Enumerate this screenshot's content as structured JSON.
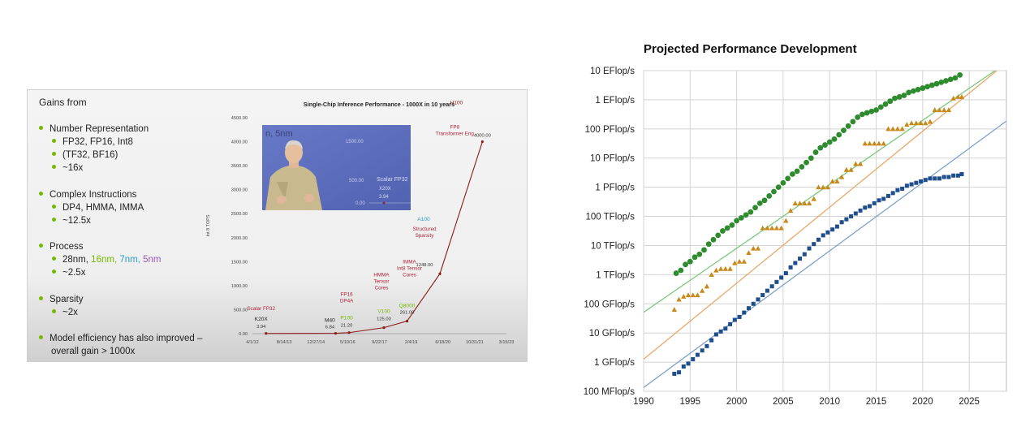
{
  "slide": {
    "gains_title": "Gains from",
    "bullets": {
      "number_rep": "Number Representation",
      "nr_1": "FP32, FP16, Int8",
      "nr_2": "(TF32, BF16)",
      "nr_3": "~16x",
      "complex": "Complex Instructions",
      "ci_1": "DP4, HMMA, IMMA",
      "ci_2": "~12.5x",
      "process": "Process",
      "p_28": "28nm,",
      "p_16": "16nm,",
      "p_7": "7nm,",
      "p_5": "5nm",
      "p_2": "~2.5x",
      "sparsity": "Sparsity",
      "sp_1": "~2x",
      "model_1": "Model efficiency has also improved –",
      "model_2": "overall gain > 1000x"
    },
    "video": {
      "overlay_title": "n, 5nm",
      "tick_1500": "1500.00",
      "tick_500": "500.00",
      "tick_0": "0.00",
      "label_1": "Scalar FP32",
      "label_2": "X20X",
      "label_3": "3.94"
    }
  },
  "chart_data": [
    {
      "type": "line",
      "title": "Single-Chip Inference Performance - 1000X in 10 years",
      "ylabel": "Int 8 TOPS",
      "y_ticks": [
        "0.00",
        "500.00",
        "1000.00",
        "1500.00",
        "2000.00",
        "2500.00",
        "3000.00",
        "3500.00",
        "4000.00",
        "4500.00"
      ],
      "x_ticks": [
        "4/1/12",
        "8/14/13",
        "12/27/14",
        "5/10/16",
        "9/22/17",
        "2/4/19",
        "6/18/20",
        "10/31/21",
        "3/15/23"
      ],
      "ylim": [
        0,
        4500
      ],
      "color": "#8b1a1a",
      "points": [
        {
          "gpu": "K20X",
          "value": 3.94,
          "value_label": "3.94",
          "note": "Scalar FP32",
          "date": "2012-11"
        },
        {
          "gpu": "M40",
          "value": 6.84,
          "value_label": "6.84",
          "note": "",
          "date": "2015-11"
        },
        {
          "gpu": "P100",
          "value": 21.2,
          "value_label": "21.20",
          "note": "FP16 DP4A",
          "date": "2016-06"
        },
        {
          "gpu": "V100",
          "value": 125,
          "value_label": "125.00",
          "note": "HMMA Tensor Cores",
          "date": "2017-12"
        },
        {
          "gpu": "Q8000",
          "value": 261,
          "value_label": "261.00",
          "note": "IMMA Int8 Tensor Cores",
          "date": "2018-12"
        },
        {
          "gpu": "A100",
          "value": 1248,
          "value_label": "1248.00",
          "note": "Structured Sparsity",
          "date": "2020-05"
        },
        {
          "gpu": "H100",
          "value": 4000,
          "value_label": "4000.00",
          "note": "FP8 Transformer Eng",
          "date": "2022-03"
        }
      ]
    },
    {
      "type": "scatter",
      "title": "Projected Performance Development",
      "y_scale": "log",
      "y_ticks": [
        "100 MFlop/s",
        "1 GFlop/s",
        "10 GFlop/s",
        "100 GFlop/s",
        "1 TFlop/s",
        "10 TFlop/s",
        "100 TFlop/s",
        "1 PFlop/s",
        "10 PFlop/s",
        "100 PFlop/s",
        "1 EFlop/s",
        "10 EFlop/s"
      ],
      "x_ticks": [
        1990,
        1995,
        2000,
        2005,
        2010,
        2015,
        2020,
        2025
      ],
      "xlim": [
        1990,
        2029
      ],
      "ylim_log10_flops": [
        8,
        19
      ],
      "grid": true,
      "series": [
        {
          "color": "#2e8b2e",
          "marker": "circle",
          "trend": {
            "x": [
              1990,
              2029
            ],
            "log10": [
              10.71,
              19.27
            ]
          },
          "x": [
            1993.5,
            1994,
            1994.5,
            1995,
            1995.5,
            1996,
            1996.5,
            1997,
            1997.5,
            1998,
            1998.5,
            1999,
            1999.5,
            2000,
            2000.5,
            2001,
            2001.5,
            2002,
            2002.5,
            2003,
            2003.5,
            2004,
            2004.5,
            2005,
            2005.5,
            2006,
            2006.5,
            2007,
            2007.5,
            2008,
            2008.5,
            2009,
            2009.5,
            2010,
            2010.5,
            2011,
            2011.5,
            2012,
            2012.5,
            2013,
            2013.5,
            2014,
            2014.5,
            2015,
            2015.5,
            2016,
            2016.5,
            2017,
            2017.5,
            2018,
            2018.5,
            2019,
            2019.5,
            2020,
            2020.5,
            2021,
            2021.5,
            2022,
            2022.5,
            2023,
            2023.5,
            2024
          ],
          "log10": [
            12.05,
            12.15,
            12.35,
            12.45,
            12.6,
            12.7,
            12.85,
            13.05,
            13.2,
            13.35,
            13.5,
            13.6,
            13.7,
            13.85,
            13.95,
            14.05,
            14.15,
            14.3,
            14.45,
            14.55,
            14.7,
            14.85,
            15.0,
            15.15,
            15.3,
            15.45,
            15.55,
            15.7,
            15.85,
            16.0,
            16.2,
            16.35,
            16.45,
            16.55,
            16.65,
            16.8,
            16.95,
            17.1,
            17.25,
            17.4,
            17.5,
            17.55,
            17.6,
            17.65,
            17.75,
            17.85,
            17.95,
            18.05,
            18.1,
            18.15,
            18.25,
            18.3,
            18.35,
            18.4,
            18.45,
            18.5,
            18.55,
            18.6,
            18.65,
            18.7,
            18.75,
            18.85
          ]
        },
        {
          "color": "#c9891a",
          "marker": "triangle",
          "trend": {
            "x": [
              1990,
              2029
            ],
            "log10": [
              9.1,
              19.27
            ]
          },
          "x": [
            1993.3,
            1993.8,
            1994.3,
            1994.8,
            1995.3,
            1995.8,
            1996.3,
            1996.8,
            1997.3,
            1997.8,
            1998.3,
            1998.8,
            1999.3,
            1999.8,
            2000.3,
            2000.8,
            2001.3,
            2001.8,
            2002.3,
            2002.8,
            2003.3,
            2003.8,
            2004.3,
            2004.8,
            2005.3,
            2005.8,
            2006.3,
            2006.8,
            2007.3,
            2007.8,
            2008.3,
            2008.8,
            2009.3,
            2009.8,
            2010.3,
            2010.8,
            2011.3,
            2011.8,
            2012.3,
            2012.8,
            2013.3,
            2013.8,
            2014.3,
            2014.8,
            2015.3,
            2015.8,
            2016.3,
            2016.8,
            2017.3,
            2017.8,
            2018.3,
            2018.8,
            2019.3,
            2019.8,
            2020.3,
            2020.8,
            2021.3,
            2021.8,
            2022.3,
            2022.8,
            2023.3,
            2023.8,
            2024.2
          ],
          "log10": [
            10.8,
            11.15,
            11.25,
            11.3,
            11.3,
            11.3,
            11.45,
            11.6,
            12.0,
            12.15,
            12.2,
            12.2,
            12.2,
            12.4,
            12.45,
            12.45,
            12.75,
            12.9,
            12.9,
            13.6,
            13.6,
            13.6,
            13.6,
            13.6,
            13.85,
            14.2,
            14.45,
            14.45,
            14.45,
            14.45,
            14.6,
            15.0,
            15.0,
            15.0,
            15.2,
            15.2,
            15.35,
            15.6,
            15.6,
            15.8,
            15.8,
            16.5,
            16.5,
            16.5,
            16.5,
            16.5,
            17.0,
            17.0,
            17.0,
            17.0,
            17.15,
            17.2,
            17.2,
            17.2,
            17.2,
            17.25,
            17.65,
            17.65,
            17.65,
            17.65,
            18.05,
            18.1,
            18.1
          ]
        },
        {
          "color": "#1f4e8c",
          "marker": "square",
          "trend": {
            "x": [
              1990,
              2029
            ],
            "log10": [
              8.13,
              17.27
            ]
          },
          "x": [
            1993.3,
            1993.8,
            1994.3,
            1994.8,
            1995.3,
            1995.8,
            1996.3,
            1996.8,
            1997.3,
            1997.8,
            1998.3,
            1998.8,
            1999.3,
            1999.8,
            2000.3,
            2000.8,
            2001.3,
            2001.8,
            2002.3,
            2002.8,
            2003.3,
            2003.8,
            2004.3,
            2004.8,
            2005.3,
            2005.8,
            2006.3,
            2006.8,
            2007.3,
            2007.8,
            2008.3,
            2008.8,
            2009.3,
            2009.8,
            2010.3,
            2010.8,
            2011.3,
            2011.8,
            2012.3,
            2012.8,
            2013.3,
            2013.8,
            2014.3,
            2014.8,
            2015.3,
            2015.8,
            2016.3,
            2016.8,
            2017.3,
            2017.8,
            2018.3,
            2018.8,
            2019.3,
            2019.8,
            2020.3,
            2020.8,
            2021.3,
            2021.8,
            2022.3,
            2022.8,
            2023.3,
            2023.8,
            2024.2
          ],
          "log10": [
            8.6,
            8.65,
            8.85,
            8.95,
            9.1,
            9.25,
            9.4,
            9.55,
            9.75,
            9.95,
            10.05,
            10.15,
            10.3,
            10.45,
            10.55,
            10.7,
            10.85,
            11.0,
            11.15,
            11.3,
            11.45,
            11.6,
            11.75,
            11.9,
            12.05,
            12.25,
            12.4,
            12.55,
            12.7,
            12.9,
            13.05,
            13.2,
            13.35,
            13.45,
            13.55,
            13.65,
            13.8,
            13.9,
            14.0,
            14.1,
            14.2,
            14.3,
            14.35,
            14.45,
            14.55,
            14.6,
            14.7,
            14.8,
            14.9,
            14.95,
            15.05,
            15.1,
            15.15,
            15.2,
            15.25,
            15.3,
            15.3,
            15.3,
            15.35,
            15.35,
            15.4,
            15.4,
            15.45
          ]
        }
      ]
    }
  ]
}
